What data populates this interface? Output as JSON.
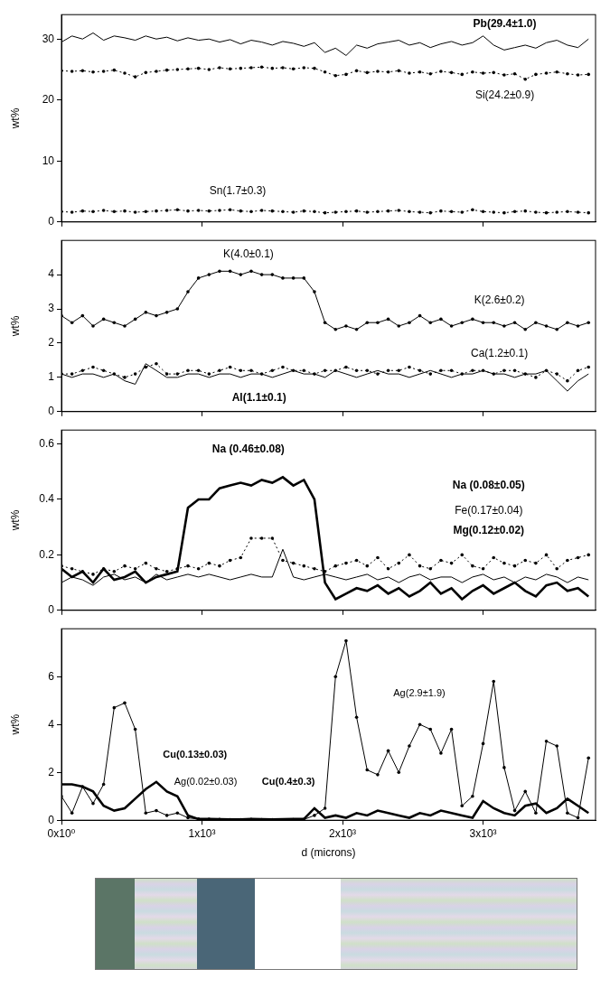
{
  "chart_data": [
    {
      "type": "line",
      "y_label": "wt%",
      "grid": false,
      "tick_labels": "y",
      "x": [
        0,
        75,
        150,
        225,
        300,
        375,
        450,
        525,
        600,
        675,
        750,
        825,
        900,
        975,
        1050,
        1125,
        1200,
        1275,
        1350,
        1425,
        1500,
        1575,
        1650,
        1725,
        1800,
        1875,
        1950,
        2025,
        2100,
        2175,
        2250,
        2325,
        2400,
        2475,
        2550,
        2625,
        2700,
        2775,
        2850,
        2925,
        3000,
        3075,
        3150,
        3225,
        3300,
        3375,
        3450,
        3525,
        3600,
        3675,
        3750
      ],
      "xlim": [
        0,
        3800
      ],
      "xticks": [
        0,
        1000,
        2000,
        3000
      ],
      "ylim": [
        0,
        34
      ],
      "yticks": [
        0,
        10,
        20,
        30
      ],
      "series": [
        {
          "name": "Pb",
          "color": "#000000",
          "line_style": "solid",
          "marker": "none",
          "values": [
            29.5,
            30.5,
            30,
            31,
            29.8,
            30.5,
            30.2,
            29.8,
            30.5,
            30,
            30.3,
            29.7,
            30.2,
            29.8,
            30,
            29.5,
            29.9,
            29.2,
            29.8,
            29.5,
            29,
            29.6,
            29.3,
            28.8,
            29.4,
            27.8,
            28.5,
            27.3,
            29,
            28.5,
            29.2,
            29.5,
            29.8,
            29,
            29.4,
            28.6,
            29.2,
            29.6,
            29,
            29.4,
            30.5,
            29,
            28.2,
            28.6,
            29,
            28.5,
            29.4,
            29.8,
            29,
            28.6,
            30
          ]
        },
        {
          "name": "Si",
          "color": "#000000",
          "line_style": "dotted",
          "marker": "circle",
          "values": [
            24.8,
            24.7,
            24.8,
            24.6,
            24.7,
            24.9,
            24.4,
            23.8,
            24.5,
            24.7,
            24.9,
            25,
            25.1,
            25.2,
            25,
            25.3,
            25.1,
            25.2,
            25.3,
            25.4,
            25.2,
            25.3,
            25.1,
            25.3,
            25.2,
            24.6,
            24,
            24.2,
            24.8,
            24.5,
            24.7,
            24.6,
            24.8,
            24.4,
            24.6,
            24.3,
            24.7,
            24.5,
            24.2,
            24.6,
            24.4,
            24.5,
            24.1,
            24.3,
            23.4,
            24.2,
            24.4,
            24.6,
            24.3,
            24.1,
            24.2
          ]
        },
        {
          "name": "Sn",
          "color": "#000000",
          "line_style": "dotted",
          "marker": "circle",
          "values": [
            1.7,
            1.6,
            1.8,
            1.7,
            1.9,
            1.7,
            1.8,
            1.6,
            1.7,
            1.8,
            1.9,
            2.0,
            1.8,
            1.9,
            1.8,
            1.9,
            2.0,
            1.8,
            1.7,
            1.9,
            1.8,
            1.7,
            1.6,
            1.8,
            1.7,
            1.5,
            1.6,
            1.7,
            1.8,
            1.6,
            1.7,
            1.8,
            1.9,
            1.7,
            1.6,
            1.5,
            1.8,
            1.7,
            1.6,
            2.0,
            1.7,
            1.6,
            1.5,
            1.7,
            1.8,
            1.6,
            1.5,
            1.6,
            1.7,
            1.6,
            1.5
          ]
        }
      ],
      "annotations": [
        "Pb(29.4±1.0)",
        "Si(24.2±0.9)",
        "Sn(1.7±0.3)"
      ]
    },
    {
      "type": "line",
      "y_label": "wt%",
      "grid": false,
      "tick_labels": "y",
      "x": [
        0,
        75,
        150,
        225,
        300,
        375,
        450,
        525,
        600,
        675,
        750,
        825,
        900,
        975,
        1050,
        1125,
        1200,
        1275,
        1350,
        1425,
        1500,
        1575,
        1650,
        1725,
        1800,
        1875,
        1950,
        2025,
        2100,
        2175,
        2250,
        2325,
        2400,
        2475,
        2550,
        2625,
        2700,
        2775,
        2850,
        2925,
        3000,
        3075,
        3150,
        3225,
        3300,
        3375,
        3450,
        3525,
        3600,
        3675,
        3750
      ],
      "xlim": [
        0,
        3800
      ],
      "xticks": [
        0,
        1000,
        2000,
        3000
      ],
      "ylim": [
        0,
        5
      ],
      "yticks": [
        0,
        1,
        2,
        3,
        4
      ],
      "series": [
        {
          "name": "K",
          "color": "#000000",
          "line_style": "solid",
          "marker": "circle",
          "values": [
            2.8,
            2.6,
            2.8,
            2.5,
            2.7,
            2.6,
            2.5,
            2.7,
            2.9,
            2.8,
            2.9,
            3.0,
            3.5,
            3.9,
            4.0,
            4.1,
            4.1,
            4.0,
            4.1,
            4.0,
            4.0,
            3.9,
            3.9,
            3.9,
            3.5,
            2.6,
            2.4,
            2.5,
            2.4,
            2.6,
            2.6,
            2.7,
            2.5,
            2.6,
            2.8,
            2.6,
            2.7,
            2.5,
            2.6,
            2.7,
            2.6,
            2.6,
            2.5,
            2.6,
            2.4,
            2.6,
            2.5,
            2.4,
            2.6,
            2.5,
            2.6
          ]
        },
        {
          "name": "Ca",
          "color": "#000000",
          "line_style": "dotted",
          "marker": "circle",
          "values": [
            1.1,
            1.1,
            1.2,
            1.3,
            1.2,
            1.1,
            1.0,
            1.1,
            1.3,
            1.4,
            1.1,
            1.1,
            1.2,
            1.2,
            1.1,
            1.2,
            1.3,
            1.2,
            1.2,
            1.1,
            1.2,
            1.3,
            1.2,
            1.2,
            1.1,
            1.2,
            1.2,
            1.3,
            1.2,
            1.2,
            1.1,
            1.2,
            1.2,
            1.3,
            1.2,
            1.1,
            1.2,
            1.2,
            1.1,
            1.2,
            1.2,
            1.1,
            1.2,
            1.2,
            1.1,
            1.0,
            1.2,
            1.1,
            0.9,
            1.2,
            1.3
          ]
        },
        {
          "name": "Al",
          "color": "#000000",
          "line_style": "solid",
          "marker": "none",
          "values": [
            1.1,
            1.0,
            1.1,
            1.1,
            1.0,
            1.1,
            0.9,
            0.8,
            1.4,
            1.2,
            1.0,
            1.0,
            1.1,
            1.1,
            1.0,
            1.1,
            1.1,
            1.0,
            1.1,
            1.1,
            1.0,
            1.1,
            1.2,
            1.1,
            1.1,
            1.0,
            1.2,
            1.1,
            1.0,
            1.1,
            1.2,
            1.1,
            1.1,
            1.0,
            1.1,
            1.2,
            1.1,
            1.0,
            1.1,
            1.1,
            1.2,
            1.1,
            1.1,
            1.0,
            1.1,
            1.1,
            1.2,
            0.9,
            0.6,
            0.9,
            1.1
          ]
        }
      ],
      "annotations": [
        "K(4.0±0.1)",
        "K(2.6±0.2)",
        "Ca(1.2±0.1)",
        "Al(1.1±0.1)"
      ]
    },
    {
      "type": "line",
      "y_label": "wt%",
      "grid": false,
      "tick_labels": "y",
      "x": [
        0,
        75,
        150,
        225,
        300,
        375,
        450,
        525,
        600,
        675,
        750,
        825,
        900,
        975,
        1050,
        1125,
        1200,
        1275,
        1350,
        1425,
        1500,
        1575,
        1650,
        1725,
        1800,
        1875,
        1950,
        2025,
        2100,
        2175,
        2250,
        2325,
        2400,
        2475,
        2550,
        2625,
        2700,
        2775,
        2850,
        2925,
        3000,
        3075,
        3150,
        3225,
        3300,
        3375,
        3450,
        3525,
        3600,
        3675,
        3750
      ],
      "xlim": [
        0,
        3800
      ],
      "xticks": [
        0,
        1000,
        2000,
        3000
      ],
      "ylim": [
        0,
        0.65
      ],
      "yticks": [
        0,
        0.2,
        0.4,
        0.6
      ],
      "series": [
        {
          "name": "Na",
          "color": "#000000",
          "line_style": "thick",
          "marker": "none",
          "values": [
            0.15,
            0.12,
            0.14,
            0.1,
            0.15,
            0.11,
            0.12,
            0.14,
            0.1,
            0.12,
            0.13,
            0.14,
            0.37,
            0.4,
            0.4,
            0.44,
            0.45,
            0.46,
            0.45,
            0.47,
            0.46,
            0.48,
            0.45,
            0.47,
            0.4,
            0.1,
            0.04,
            0.06,
            0.08,
            0.07,
            0.09,
            0.06,
            0.08,
            0.05,
            0.07,
            0.1,
            0.06,
            0.08,
            0.04,
            0.07,
            0.09,
            0.06,
            0.08,
            0.1,
            0.07,
            0.05,
            0.09,
            0.1,
            0.07,
            0.08,
            0.05
          ]
        },
        {
          "name": "Fe",
          "color": "#000000",
          "line_style": "dotted",
          "marker": "circle",
          "values": [
            0.16,
            0.15,
            0.14,
            0.13,
            0.15,
            0.14,
            0.16,
            0.15,
            0.17,
            0.15,
            0.14,
            0.15,
            0.16,
            0.15,
            0.17,
            0.16,
            0.18,
            0.19,
            0.26,
            0.26,
            0.26,
            0.18,
            0.17,
            0.16,
            0.15,
            0.14,
            0.16,
            0.17,
            0.18,
            0.16,
            0.19,
            0.15,
            0.17,
            0.2,
            0.16,
            0.15,
            0.18,
            0.17,
            0.2,
            0.16,
            0.15,
            0.19,
            0.17,
            0.16,
            0.18,
            0.17,
            0.2,
            0.15,
            0.18,
            0.19,
            0.2
          ]
        },
        {
          "name": "Mg",
          "color": "#000000",
          "line_style": "solid",
          "marker": "none",
          "values": [
            0.1,
            0.12,
            0.11,
            0.09,
            0.12,
            0.13,
            0.11,
            0.12,
            0.1,
            0.13,
            0.11,
            0.12,
            0.13,
            0.12,
            0.13,
            0.12,
            0.11,
            0.12,
            0.13,
            0.12,
            0.12,
            0.22,
            0.12,
            0.11,
            0.12,
            0.13,
            0.12,
            0.11,
            0.12,
            0.13,
            0.11,
            0.12,
            0.1,
            0.12,
            0.13,
            0.11,
            0.12,
            0.12,
            0.1,
            0.12,
            0.13,
            0.11,
            0.12,
            0.1,
            0.12,
            0.11,
            0.13,
            0.12,
            0.1,
            0.12,
            0.11
          ]
        }
      ],
      "annotations": [
        "Na (0.46±0.08)",
        "Na (0.08±0.05)",
        "Fe(0.17±0.04)",
        "Mg(0.12±0.02)"
      ]
    },
    {
      "type": "line",
      "y_label": "wt%",
      "x_label": "d (microns)",
      "grid": false,
      "x": [
        0,
        75,
        150,
        225,
        300,
        375,
        450,
        525,
        600,
        675,
        750,
        825,
        900,
        975,
        1050,
        1125,
        1200,
        1275,
        1350,
        1425,
        1500,
        1575,
        1650,
        1725,
        1800,
        1875,
        1950,
        2025,
        2100,
        2175,
        2250,
        2325,
        2400,
        2475,
        2550,
        2625,
        2700,
        2775,
        2850,
        2925,
        3000,
        3075,
        3150,
        3225,
        3300,
        3375,
        3450,
        3525,
        3600,
        3675,
        3750
      ],
      "xlim": [
        0,
        3800
      ],
      "xticks": [
        {
          "value": 0,
          "label": "0x10⁰"
        },
        {
          "value": 1000,
          "label": "1x10³"
        },
        {
          "value": 2000,
          "label": "2x10³"
        },
        {
          "value": 3000,
          "label": "3x10³"
        }
      ],
      "ylim": [
        0,
        8
      ],
      "yticks": [
        0,
        2,
        4,
        6
      ],
      "series": [
        {
          "name": "Ag",
          "color": "#000000",
          "line_style": "solid",
          "marker": "circle",
          "values": [
            1.0,
            0.3,
            1.4,
            0.7,
            1.5,
            4.7,
            4.9,
            3.8,
            0.3,
            0.4,
            0.2,
            0.3,
            0.1,
            0.05,
            0.04,
            0.03,
            0.02,
            0.02,
            0.03,
            0.02,
            0.02,
            0.01,
            0.02,
            0.03,
            0.2,
            0.5,
            6.0,
            7.5,
            4.3,
            2.1,
            1.9,
            2.9,
            2.0,
            3.1,
            4.0,
            3.8,
            2.8,
            3.8,
            0.6,
            1.0,
            3.2,
            5.8,
            2.2,
            0.4,
            1.2,
            0.3,
            3.3,
            3.1,
            0.3,
            0.1,
            2.6
          ]
        },
        {
          "name": "Cu",
          "color": "#000000",
          "line_style": "thick",
          "marker": "none",
          "values": [
            1.5,
            1.5,
            1.4,
            1.2,
            0.6,
            0.4,
            0.5,
            0.9,
            1.3,
            1.6,
            1.2,
            1.0,
            0.2,
            0.05,
            0.05,
            0.04,
            0.03,
            0.03,
            0.05,
            0.04,
            0.03,
            0.04,
            0.05,
            0.05,
            0.5,
            0.1,
            0.2,
            0.1,
            0.3,
            0.2,
            0.4,
            0.3,
            0.2,
            0.1,
            0.3,
            0.2,
            0.4,
            0.3,
            0.2,
            0.1,
            0.8,
            0.5,
            0.3,
            0.2,
            0.6,
            0.7,
            0.3,
            0.5,
            0.9,
            0.6,
            0.3
          ]
        }
      ],
      "annotations": [
        "Cu(0.13±0.03)",
        "Ag(0.02±0.03)",
        "Ag(2.9±1.9)",
        "Cu(0.4±0.3)"
      ]
    }
  ]
}
